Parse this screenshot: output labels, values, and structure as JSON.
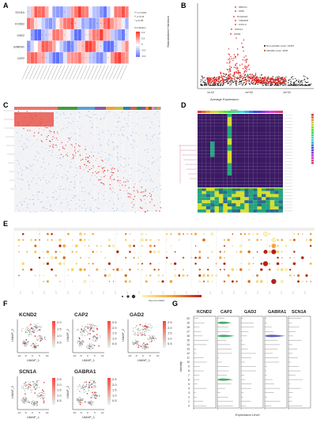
{
  "panels": {
    "a": "A",
    "b": "B",
    "c": "C",
    "d": "D",
    "e": "E",
    "f": "F",
    "g": "G"
  },
  "panel_a": {
    "rows": [
      "SCN1A",
      "KCND2",
      "GAD2",
      "GABRA1",
      "CAP2"
    ],
    "legend_title": "Correlation",
    "legend_ticks": [
      "0.4",
      "0.2",
      "0",
      "-0.2",
      "-0.4"
    ],
    "sig": [
      "*** p<0.001",
      "** p<0.01",
      "* p<0.05"
    ]
  },
  "panel_b": {
    "ylabel": "Standardized Variance",
    "xlabel": "Average Expression",
    "xticks": [
      "1e-02",
      "1e+00",
      "1e+02"
    ],
    "legend": [
      "Non-variable count: 19467",
      "Variable count: 2000"
    ],
    "genes": [
      "PRKCG",
      "OMS",
      "PLA2G2A",
      "TNFAIP6",
      "CXCL4",
      "CHI3L1",
      "APOE"
    ]
  },
  "panel_d": {
    "top_label": "Genes"
  },
  "panel_e": {
    "colorbar_label": "avg.exp.scaled"
  },
  "panel_f": {
    "plots": [
      {
        "gene": "KCND2",
        "scale": [
          "2.0",
          "1.5",
          "1.0",
          "0.5"
        ]
      },
      {
        "gene": "CAP2",
        "scale": [
          "2.5",
          "2.0",
          "1.5",
          "1.0",
          "0.5"
        ]
      },
      {
        "gene": "GAD2",
        "scale": [
          "2.5",
          "2.0",
          "1.5",
          "1.0",
          "0.5"
        ]
      },
      {
        "gene": "SCN1A",
        "scale": [
          "2.5",
          "2.0",
          "1.5",
          "1.0",
          "0.5"
        ]
      },
      {
        "gene": "GABRA1",
        "scale": [
          "2.5",
          "2.0",
          "1.5",
          "1.0",
          "0.5"
        ]
      }
    ],
    "xlabel": "UMAP_1",
    "ylabel": "UMAP_2",
    "xticks": [
      "-10",
      "-5",
      "0",
      "5",
      "10"
    ]
  },
  "panel_g": {
    "genes": [
      "KCND2",
      "CAP2",
      "GAD2",
      "GABRA1",
      "SCN1A"
    ],
    "ylabel": "Identity",
    "xlabel": "Expression Level",
    "identities": [
      "20",
      "19",
      "18",
      "17",
      "16",
      "15",
      "14",
      "13",
      "12",
      "11",
      "10",
      "9",
      "8",
      "7",
      "6",
      "5",
      "4",
      "3",
      "2",
      "1",
      "0"
    ]
  },
  "colors": {
    "red": "#d9352b",
    "blue": "#4a5aa8",
    "green": "#2eaa5c",
    "purple": "#4b2c7e"
  }
}
